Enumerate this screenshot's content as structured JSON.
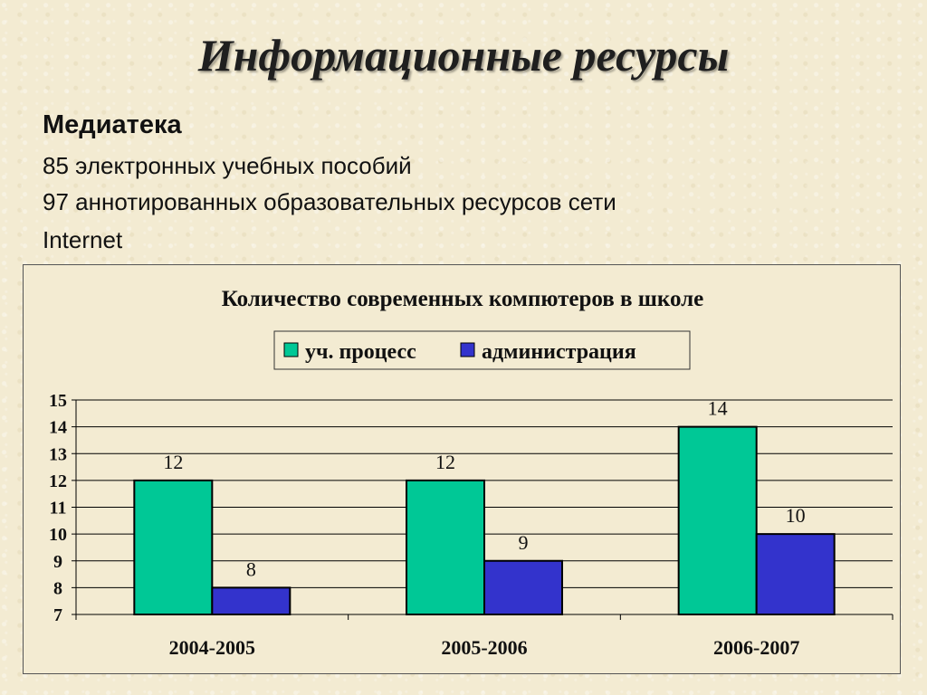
{
  "slide": {
    "title": "Информационные ресурсы",
    "subheading": "Медиатека",
    "lines": [
      "85 электронных учебных пособий",
      "97 аннотированных образовательных ресурсов сети",
      "Internet"
    ]
  },
  "colors": {
    "series1": "#00c896",
    "series2": "#3333cc",
    "grid": "#000000",
    "background": "#f3ebd2"
  },
  "chart_data": {
    "type": "bar",
    "title": "Количество современных компютеров в школе",
    "categories": [
      "2004-2005",
      "2005-2006",
      "2006-2007"
    ],
    "series": [
      {
        "name": "уч. процесс",
        "values": [
          12,
          12,
          14
        ]
      },
      {
        "name": "администрация",
        "values": [
          8,
          9,
          10
        ]
      }
    ],
    "ylim": [
      7,
      15
    ],
    "yticks": [
      7,
      8,
      9,
      10,
      11,
      12,
      13,
      14,
      15
    ],
    "grid": true,
    "legend": "top-center",
    "data_labels": true
  }
}
